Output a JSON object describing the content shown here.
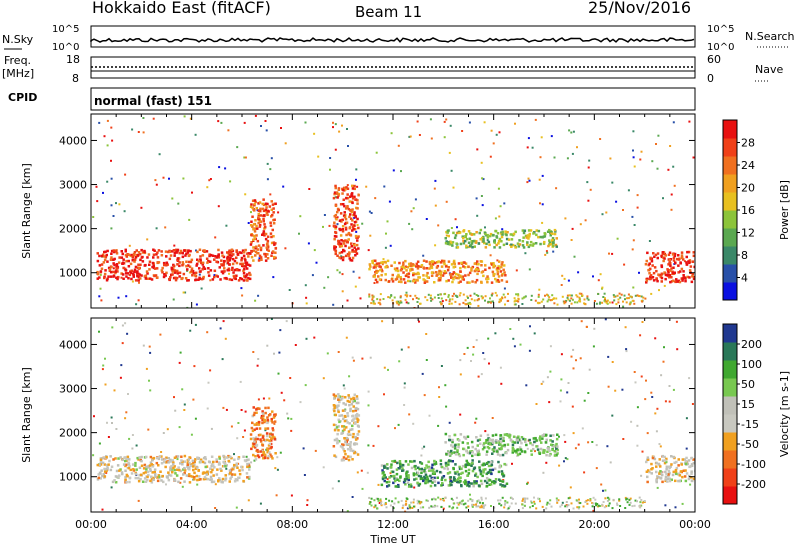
{
  "header": {
    "station": "Hokkaido East (fitACF)",
    "beam": "Beam 11",
    "date": "25/Nov/2016"
  },
  "top_panels": {
    "nsky_label": "N.Sky",
    "nsky_ticks": [
      "10^5",
      "10^0"
    ],
    "nsearch_ticks": [
      "10^5",
      "10^0"
    ],
    "nsearch_label": "N.Search",
    "freq_label_1": "Freq.",
    "freq_label_2": "[MHz]",
    "freq_ticks": [
      "18",
      "8"
    ],
    "nave_ticks": [
      "60",
      "0"
    ],
    "nave_label": "Nave",
    "cpid_label": "CPID",
    "cpid_value": "normal (fast) 151"
  },
  "chart_data": [
    {
      "type": "heatmap",
      "name": "power",
      "ylabel": "Slant Range [km]",
      "yticks": [
        "4000",
        "3000",
        "2000",
        "1000"
      ],
      "ylim": [
        200,
        4600
      ],
      "colorbar_label": "Power [dB]",
      "colorbar_ticks": [
        "28",
        "24",
        "20",
        "16",
        "12",
        "8",
        "4"
      ],
      "colors": [
        "#0a10e0",
        "#2850a8",
        "#3a8868",
        "#5aa850",
        "#8cc43a",
        "#e8c020",
        "#f0a020",
        "#f07020",
        "#f04018",
        "#e81010"
      ],
      "regions": [
        {
          "t": [
            0.2,
            6.3
          ],
          "r": [
            850,
            1550
          ],
          "level": 0.9
        },
        {
          "t": [
            6.3,
            7.3
          ],
          "r": [
            1300,
            2700
          ],
          "level": 0.8
        },
        {
          "t": [
            9.6,
            10.6
          ],
          "r": [
            1300,
            3000
          ],
          "level": 0.85
        },
        {
          "t": [
            11.0,
            16.5
          ],
          "r": [
            800,
            1300
          ],
          "level": 0.7
        },
        {
          "t": [
            14.0,
            18.5
          ],
          "r": [
            1600,
            2000
          ],
          "level": 0.45
        },
        {
          "t": [
            22.0,
            24.0
          ],
          "r": [
            800,
            1500
          ],
          "level": 0.9
        }
      ]
    },
    {
      "type": "heatmap",
      "name": "velocity",
      "ylabel": "Slant Range [km]",
      "yticks": [
        "4000",
        "3000",
        "2000",
        "1000"
      ],
      "ylim": [
        200,
        4600
      ],
      "xlabel": "Time UT",
      "xticks": [
        "00:00",
        "04:00",
        "08:00",
        "12:00",
        "16:00",
        "20:00",
        "00:00"
      ],
      "xlim": [
        0,
        24
      ],
      "colorbar_label": "Velocity [m s-1]",
      "colorbar_ticks": [
        "200",
        "100",
        "50",
        "15",
        "-15",
        "-50",
        "-100",
        "-200"
      ],
      "colors": [
        "#e81010",
        "#f04018",
        "#f07020",
        "#f0a020",
        "#c8c8c0",
        "#c0c0b8",
        "#78c850",
        "#40a830",
        "#2a7858",
        "#203890"
      ],
      "regions": [
        {
          "t": [
            0.2,
            6.3
          ],
          "r": [
            900,
            1500
          ],
          "level": 0.45
        },
        {
          "t": [
            6.3,
            7.3
          ],
          "r": [
            1400,
            2600
          ],
          "level": 0.3
        },
        {
          "t": [
            9.6,
            10.6
          ],
          "r": [
            1400,
            2900
          ],
          "level": 0.45
        },
        {
          "t": [
            11.5,
            16.5
          ],
          "r": [
            800,
            1400
          ],
          "level": 0.75
        },
        {
          "t": [
            14.0,
            18.5
          ],
          "r": [
            1500,
            2000
          ],
          "level": 0.65
        },
        {
          "t": [
            22.0,
            24.0
          ],
          "r": [
            900,
            1500
          ],
          "level": 0.45
        }
      ]
    }
  ]
}
